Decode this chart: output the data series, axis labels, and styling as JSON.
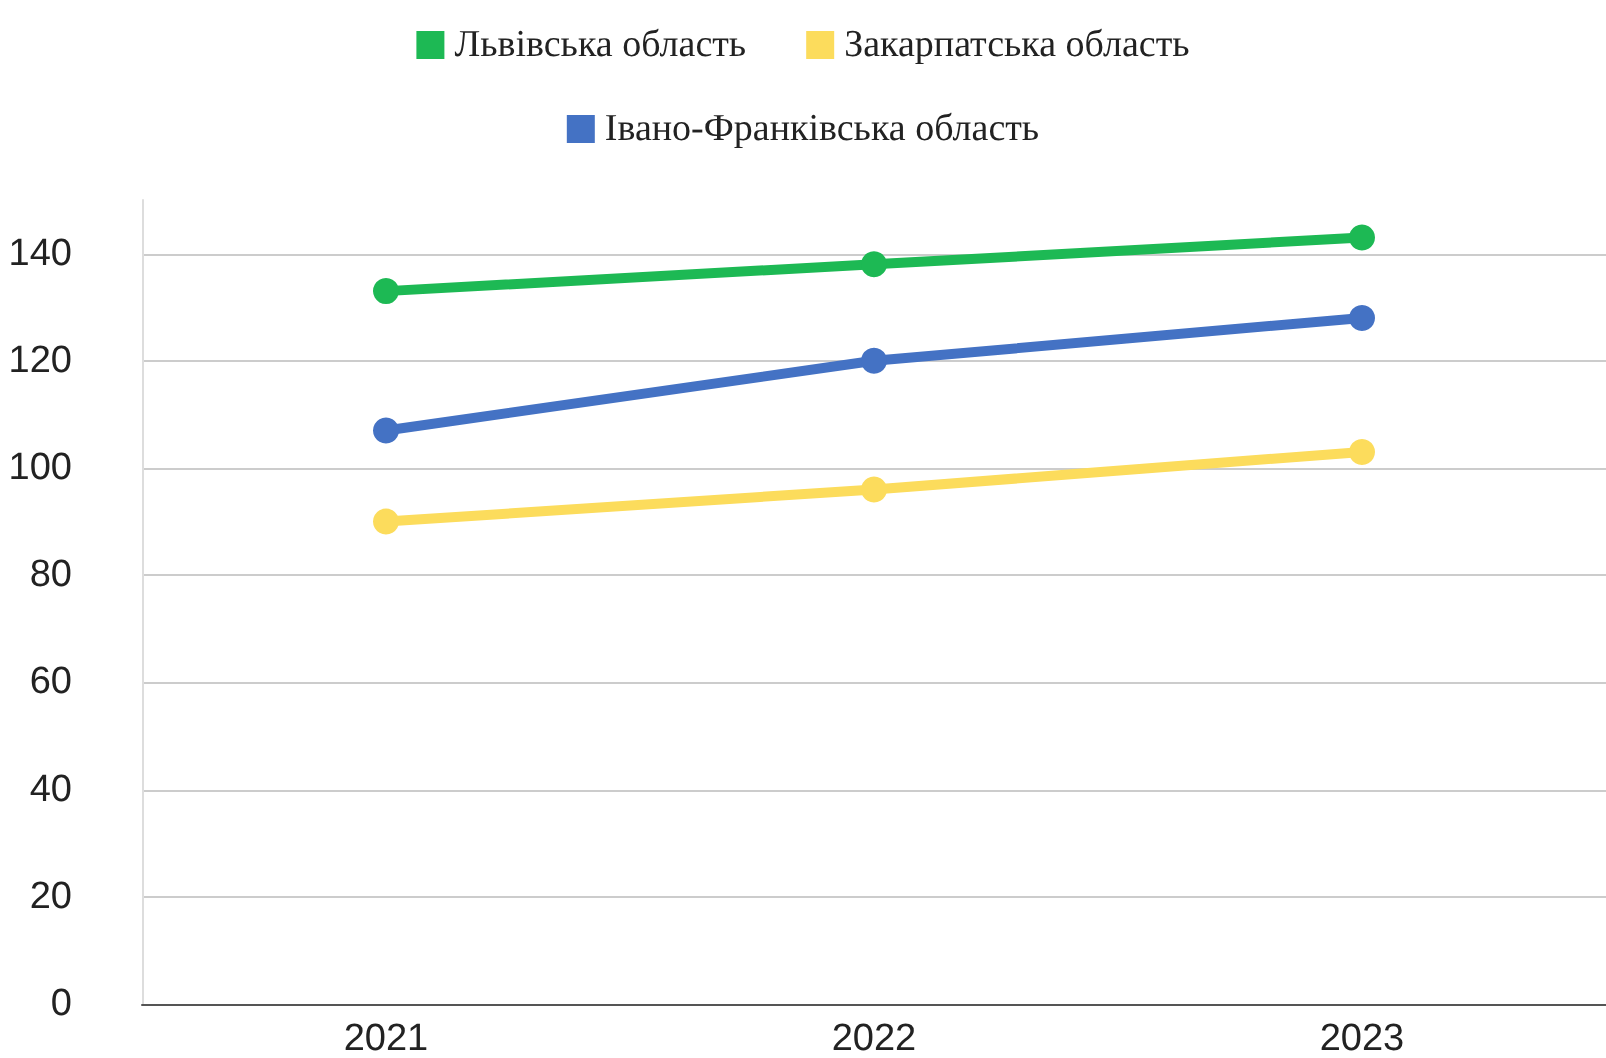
{
  "chart_data": {
    "type": "line",
    "categories": [
      "2021",
      "2022",
      "2023"
    ],
    "series": [
      {
        "name": "Львівська область",
        "color": "#1db954",
        "values": [
          133,
          138,
          143
        ]
      },
      {
        "name": "Закарпатська область",
        "color": "#fcdc5c",
        "values": [
          90,
          96,
          103
        ]
      },
      {
        "name": "Івано-Франківська область",
        "color": "#4472c4",
        "values": [
          107,
          120,
          128
        ]
      }
    ],
    "ylim": [
      0,
      150
    ],
    "yticks": [
      0,
      20,
      40,
      60,
      80,
      100,
      120,
      140
    ],
    "grid": "y",
    "legend": "top",
    "marker": "circle",
    "line_style": "solid"
  }
}
